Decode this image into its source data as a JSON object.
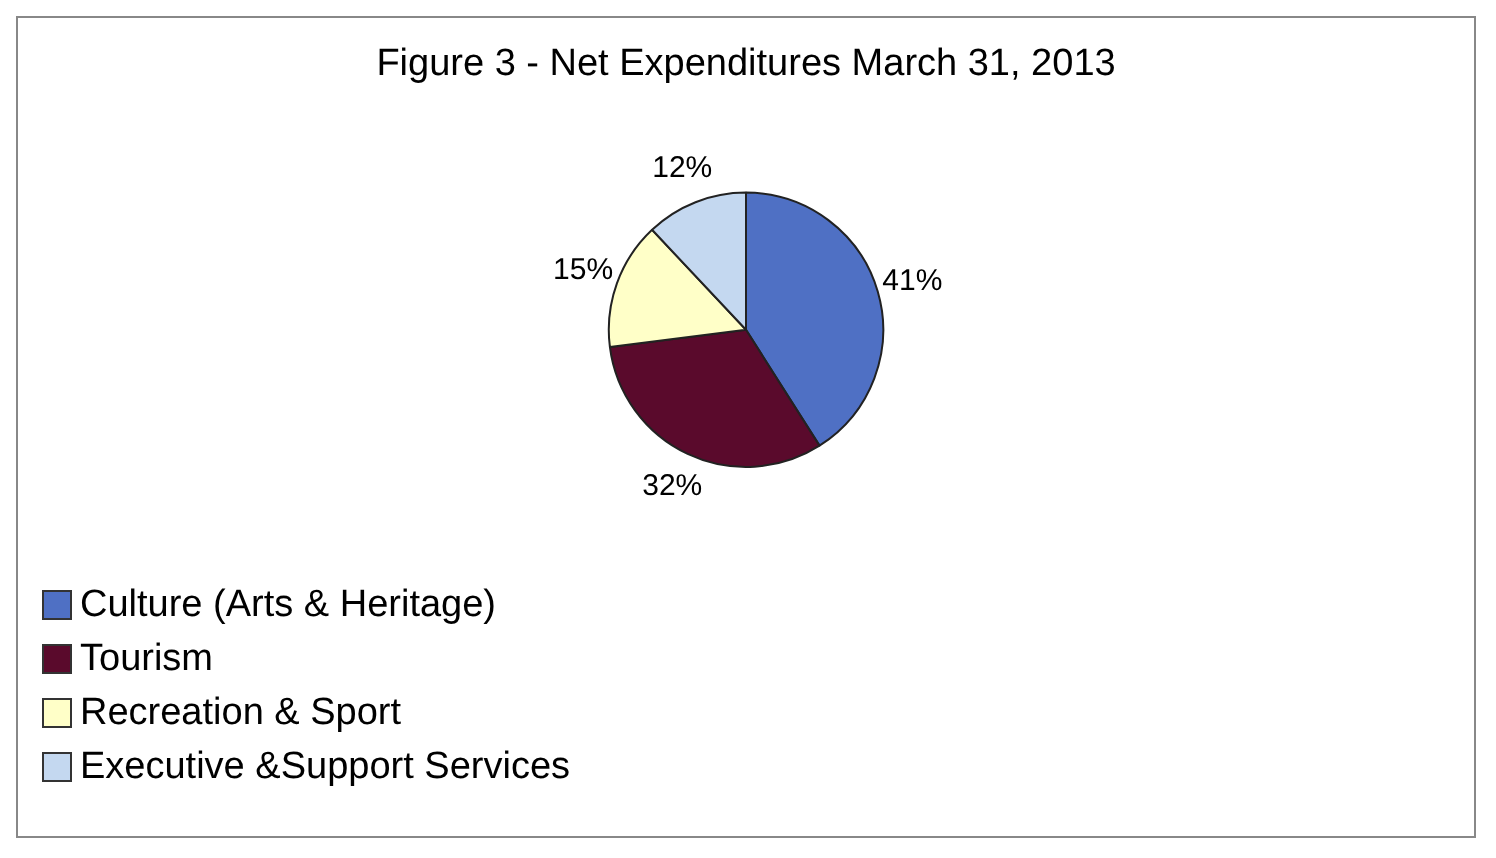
{
  "chart_data": {
    "type": "pie",
    "title": "Figure 3 - Net Expenditures March 31, 2013",
    "categories": [
      "Culture (Arts & Heritage)",
      "Tourism",
      "Recreation & Sport",
      "Executive &Support Services"
    ],
    "values": [
      41,
      32,
      15,
      12
    ],
    "colors": [
      "#4f70c4",
      "#5a0a2c",
      "#ffffc8",
      "#c4d8f0"
    ],
    "value_labels": [
      "41%",
      "32%",
      "15%",
      "12%"
    ],
    "legend": "bottom"
  }
}
